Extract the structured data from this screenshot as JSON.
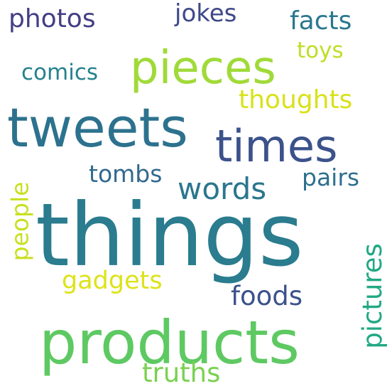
{
  "word_cloud": {
    "words": [
      {
        "text": "things",
        "color": "#2a7c8e"
      },
      {
        "text": "products",
        "color": "#5ec962"
      },
      {
        "text": "tweets",
        "color": "#2c728e"
      },
      {
        "text": "times",
        "color": "#3b528b"
      },
      {
        "text": "pieces",
        "color": "#a0da39"
      },
      {
        "text": "words",
        "color": "#2a768e"
      },
      {
        "text": "photos",
        "color": "#433e85"
      },
      {
        "text": "jokes",
        "color": "#3e4989"
      },
      {
        "text": "facts",
        "color": "#2a788e"
      },
      {
        "text": "comics",
        "color": "#26828e"
      },
      {
        "text": "toys",
        "color": "#bddf26"
      },
      {
        "text": "thoughts",
        "color": "#d8e219"
      },
      {
        "text": "tombs",
        "color": "#31688e"
      },
      {
        "text": "pairs",
        "color": "#2d708e"
      },
      {
        "text": "people",
        "color": "#c8e020"
      },
      {
        "text": "pictures",
        "color": "#22a884"
      },
      {
        "text": "gadgets",
        "color": "#dde318"
      },
      {
        "text": "foods",
        "color": "#3b528b"
      },
      {
        "text": "truths",
        "color": "#7ad151"
      }
    ]
  }
}
